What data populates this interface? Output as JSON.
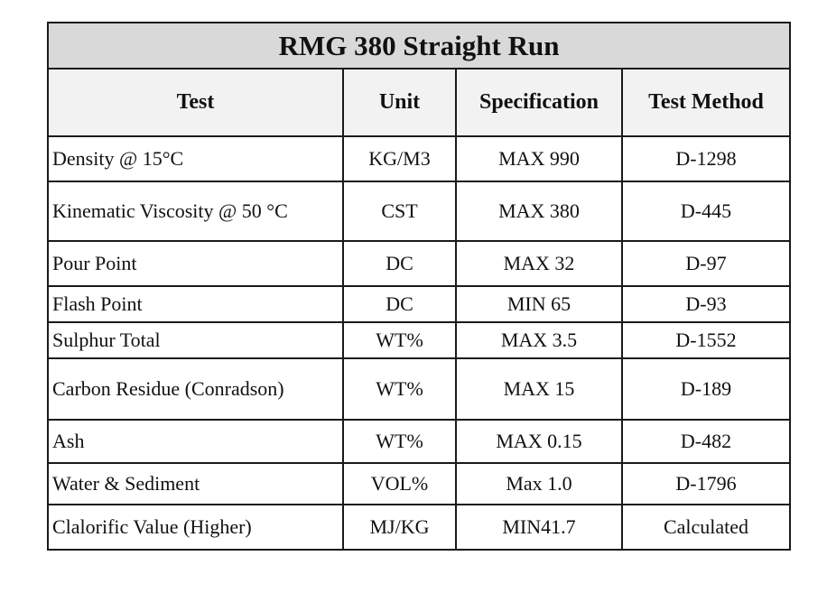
{
  "table": {
    "title": "RMG 380 Straight Run",
    "headers": [
      "Test",
      "Unit",
      "Specification",
      "Test Method"
    ],
    "rows": [
      {
        "test": "Density @ 15°C",
        "unit": "KG/M3",
        "spec": "MAX 990",
        "method": "D-1298"
      },
      {
        "test": "Kinematic Viscosity  @ 50 °C",
        "unit": "CST",
        "spec": "MAX 380",
        "method": "D-445"
      },
      {
        "test": "Pour Point",
        "unit": "DC",
        "spec": "MAX 32",
        "method": "D-97"
      },
      {
        "test": "Flash Point",
        "unit": "DC",
        "spec": "MIN 65",
        "method": "D-93"
      },
      {
        "test": "Sulphur Total",
        "unit": "WT%",
        "spec": "MAX 3.5",
        "method": "D-1552"
      },
      {
        "test": "Carbon Residue (Conradson)",
        "unit": "WT%",
        "spec": "MAX 15",
        "method": "D-189"
      },
      {
        "test": "Ash",
        "unit": "WT%",
        "spec": "MAX 0.15",
        "method": "D-482"
      },
      {
        "test": "Water & Sediment",
        "unit": "VOL%",
        "spec": "Max 1.0",
        "method": "D-1796"
      },
      {
        "test": "Clalorific Value (Higher)",
        "unit": "MJ/KG",
        "spec": "MIN41.7",
        "method": "Calculated"
      }
    ]
  }
}
